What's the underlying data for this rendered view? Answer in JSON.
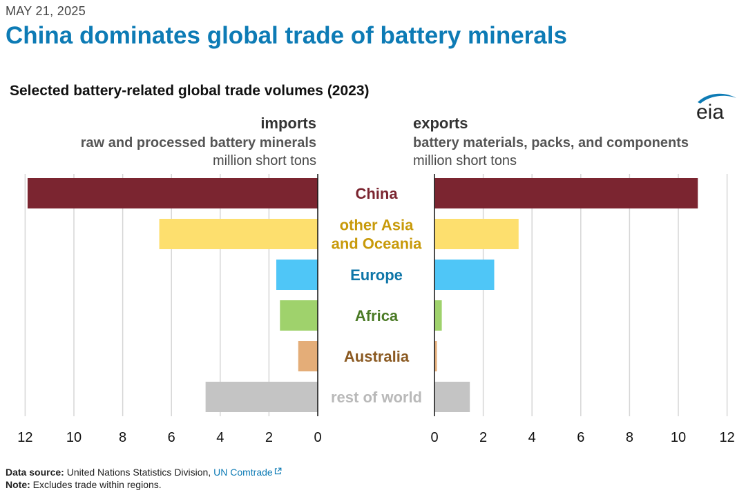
{
  "date": "MAY 21, 2025",
  "headline": "China dominates global trade of battery minerals",
  "brand": "eia",
  "chart_data": {
    "type": "bar",
    "title": "Selected battery-related global trade volumes (2023)",
    "orientation": "horizontal-butterfly",
    "categories": [
      "China",
      "other Asia and Oceania",
      "Europe",
      "Africa",
      "Australia",
      "rest of world"
    ],
    "category_lines": [
      [
        "China"
      ],
      [
        "other Asia",
        "and Oceania"
      ],
      [
        "Europe"
      ],
      [
        "Africa"
      ],
      [
        "Australia"
      ],
      [
        "rest of world"
      ]
    ],
    "category_colors": [
      "#7b2530",
      "#c89a0a",
      "#0f76a8",
      "#4a7a25",
      "#8b5a22",
      "#b9b9b9"
    ],
    "bar_colors": [
      "#7b2530",
      "#fddf6e",
      "#4fc6f7",
      "#9fd26c",
      "#e4ad78",
      "#c4c4c4"
    ],
    "imports": {
      "label": "imports",
      "description": "raw and processed battery minerals",
      "unit": "million short tons",
      "values": [
        11.9,
        6.5,
        1.7,
        1.55,
        0.8,
        4.6
      ],
      "xlim": [
        0,
        12
      ],
      "ticks": [
        12,
        10,
        8,
        6,
        4,
        2,
        0
      ]
    },
    "exports": {
      "label": "exports",
      "description": "battery materials, packs, and components",
      "unit": "million short tons",
      "values": [
        10.8,
        3.45,
        2.45,
        0.3,
        0.1,
        1.45
      ],
      "xlim": [
        0,
        12
      ],
      "ticks": [
        0,
        2,
        4,
        6,
        8,
        10,
        12
      ]
    },
    "grid": true
  },
  "footer": {
    "source_label": "Data source:",
    "source_text": "United Nations Statistics Division,",
    "source_link": "UN Comtrade",
    "link_icon": "external-link-icon",
    "note_label": "Note:",
    "note_text": "Excludes trade within regions."
  }
}
